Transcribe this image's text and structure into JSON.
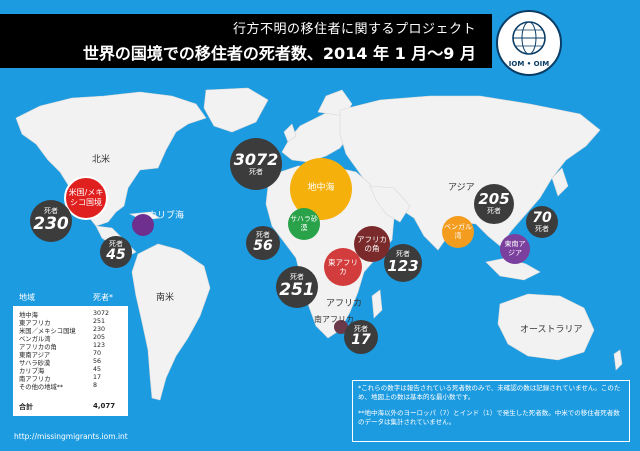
{
  "header": {
    "subtitle": "行方不明の移住者に関するプロジェクト",
    "title": "世界の国境での移住者の死者数、2014 年 1 月〜9 月"
  },
  "logo": {
    "text": "IOM • OIM"
  },
  "region_labels": {
    "north_america": "北米",
    "caribbean": "カリブ海",
    "south_america": "南米",
    "africa": "アフリカ",
    "asia": "アジア",
    "australia": "オーストラリア"
  },
  "bubbles": {
    "us_mexico": {
      "label": "米国/メキシコ国境",
      "value": "230",
      "unit": "死者"
    },
    "caribbean": {
      "value": "45",
      "unit": "死者"
    },
    "mediterranean": {
      "label": "地中海",
      "value": "3072",
      "unit": "死者"
    },
    "sahara": {
      "label": "サハラ砂漠",
      "value": "56",
      "unit": "死者"
    },
    "horn": {
      "label": "アフリカの角",
      "value": "123",
      "unit": "死者"
    },
    "east_africa": {
      "label": "東アフリカ",
      "value": "251",
      "unit": "死者"
    },
    "south_africa": {
      "label": "南アフリカ",
      "value": "17",
      "unit": "死者"
    },
    "bengal": {
      "label": "ベンガル湾",
      "value": "205",
      "unit": "死者"
    },
    "se_asia": {
      "label": "東南アジア",
      "value": "70",
      "unit": "死者"
    }
  },
  "table": {
    "col_region": "地域",
    "col_deaths": "死者*",
    "rows": [
      {
        "name": "地中海",
        "value": "3072"
      },
      {
        "name": "東アフリカ",
        "value": "251"
      },
      {
        "name": "米国／メキシコ国境",
        "value": "230"
      },
      {
        "name": "ベンガル湾",
        "value": "205"
      },
      {
        "name": "アフリカの角",
        "value": "123"
      },
      {
        "name": "東南アジア",
        "value": "70"
      },
      {
        "name": "サハラ砂漠",
        "value": "56"
      },
      {
        "name": "カリブ海",
        "value": "45"
      },
      {
        "name": "南アフリカ",
        "value": "17"
      },
      {
        "name": "その他の地域**",
        "value": "8"
      }
    ],
    "total_label": "合計",
    "total_value": "4,077"
  },
  "notes": {
    "note1": "*これらの数字は報告されている死者数のみで、未確認の数は記録されていません。このため、地図上の数は基本的な最小数です。",
    "note2": "**地中海以外のヨーロッパ（7）とインド（1）で発生した死者数。中米での移住者死者数のデータは集計されていません。"
  },
  "url": "http://missingmigrants.iom.int",
  "colors": {
    "ocean": "#1d9be0",
    "land": "#f2f2f2",
    "dark_bubble": "#3c3c3c",
    "mediterranean": "#f5b00b",
    "us_mexico": "#e0201f",
    "caribbean": "#6e2f8f",
    "sahara": "#2aa24a",
    "horn": "#7a2a2a",
    "east_africa": "#d23c3c",
    "south_africa": "#6a3a4a",
    "bengal": "#f39c1e",
    "se_asia": "#7b3f9e"
  }
}
